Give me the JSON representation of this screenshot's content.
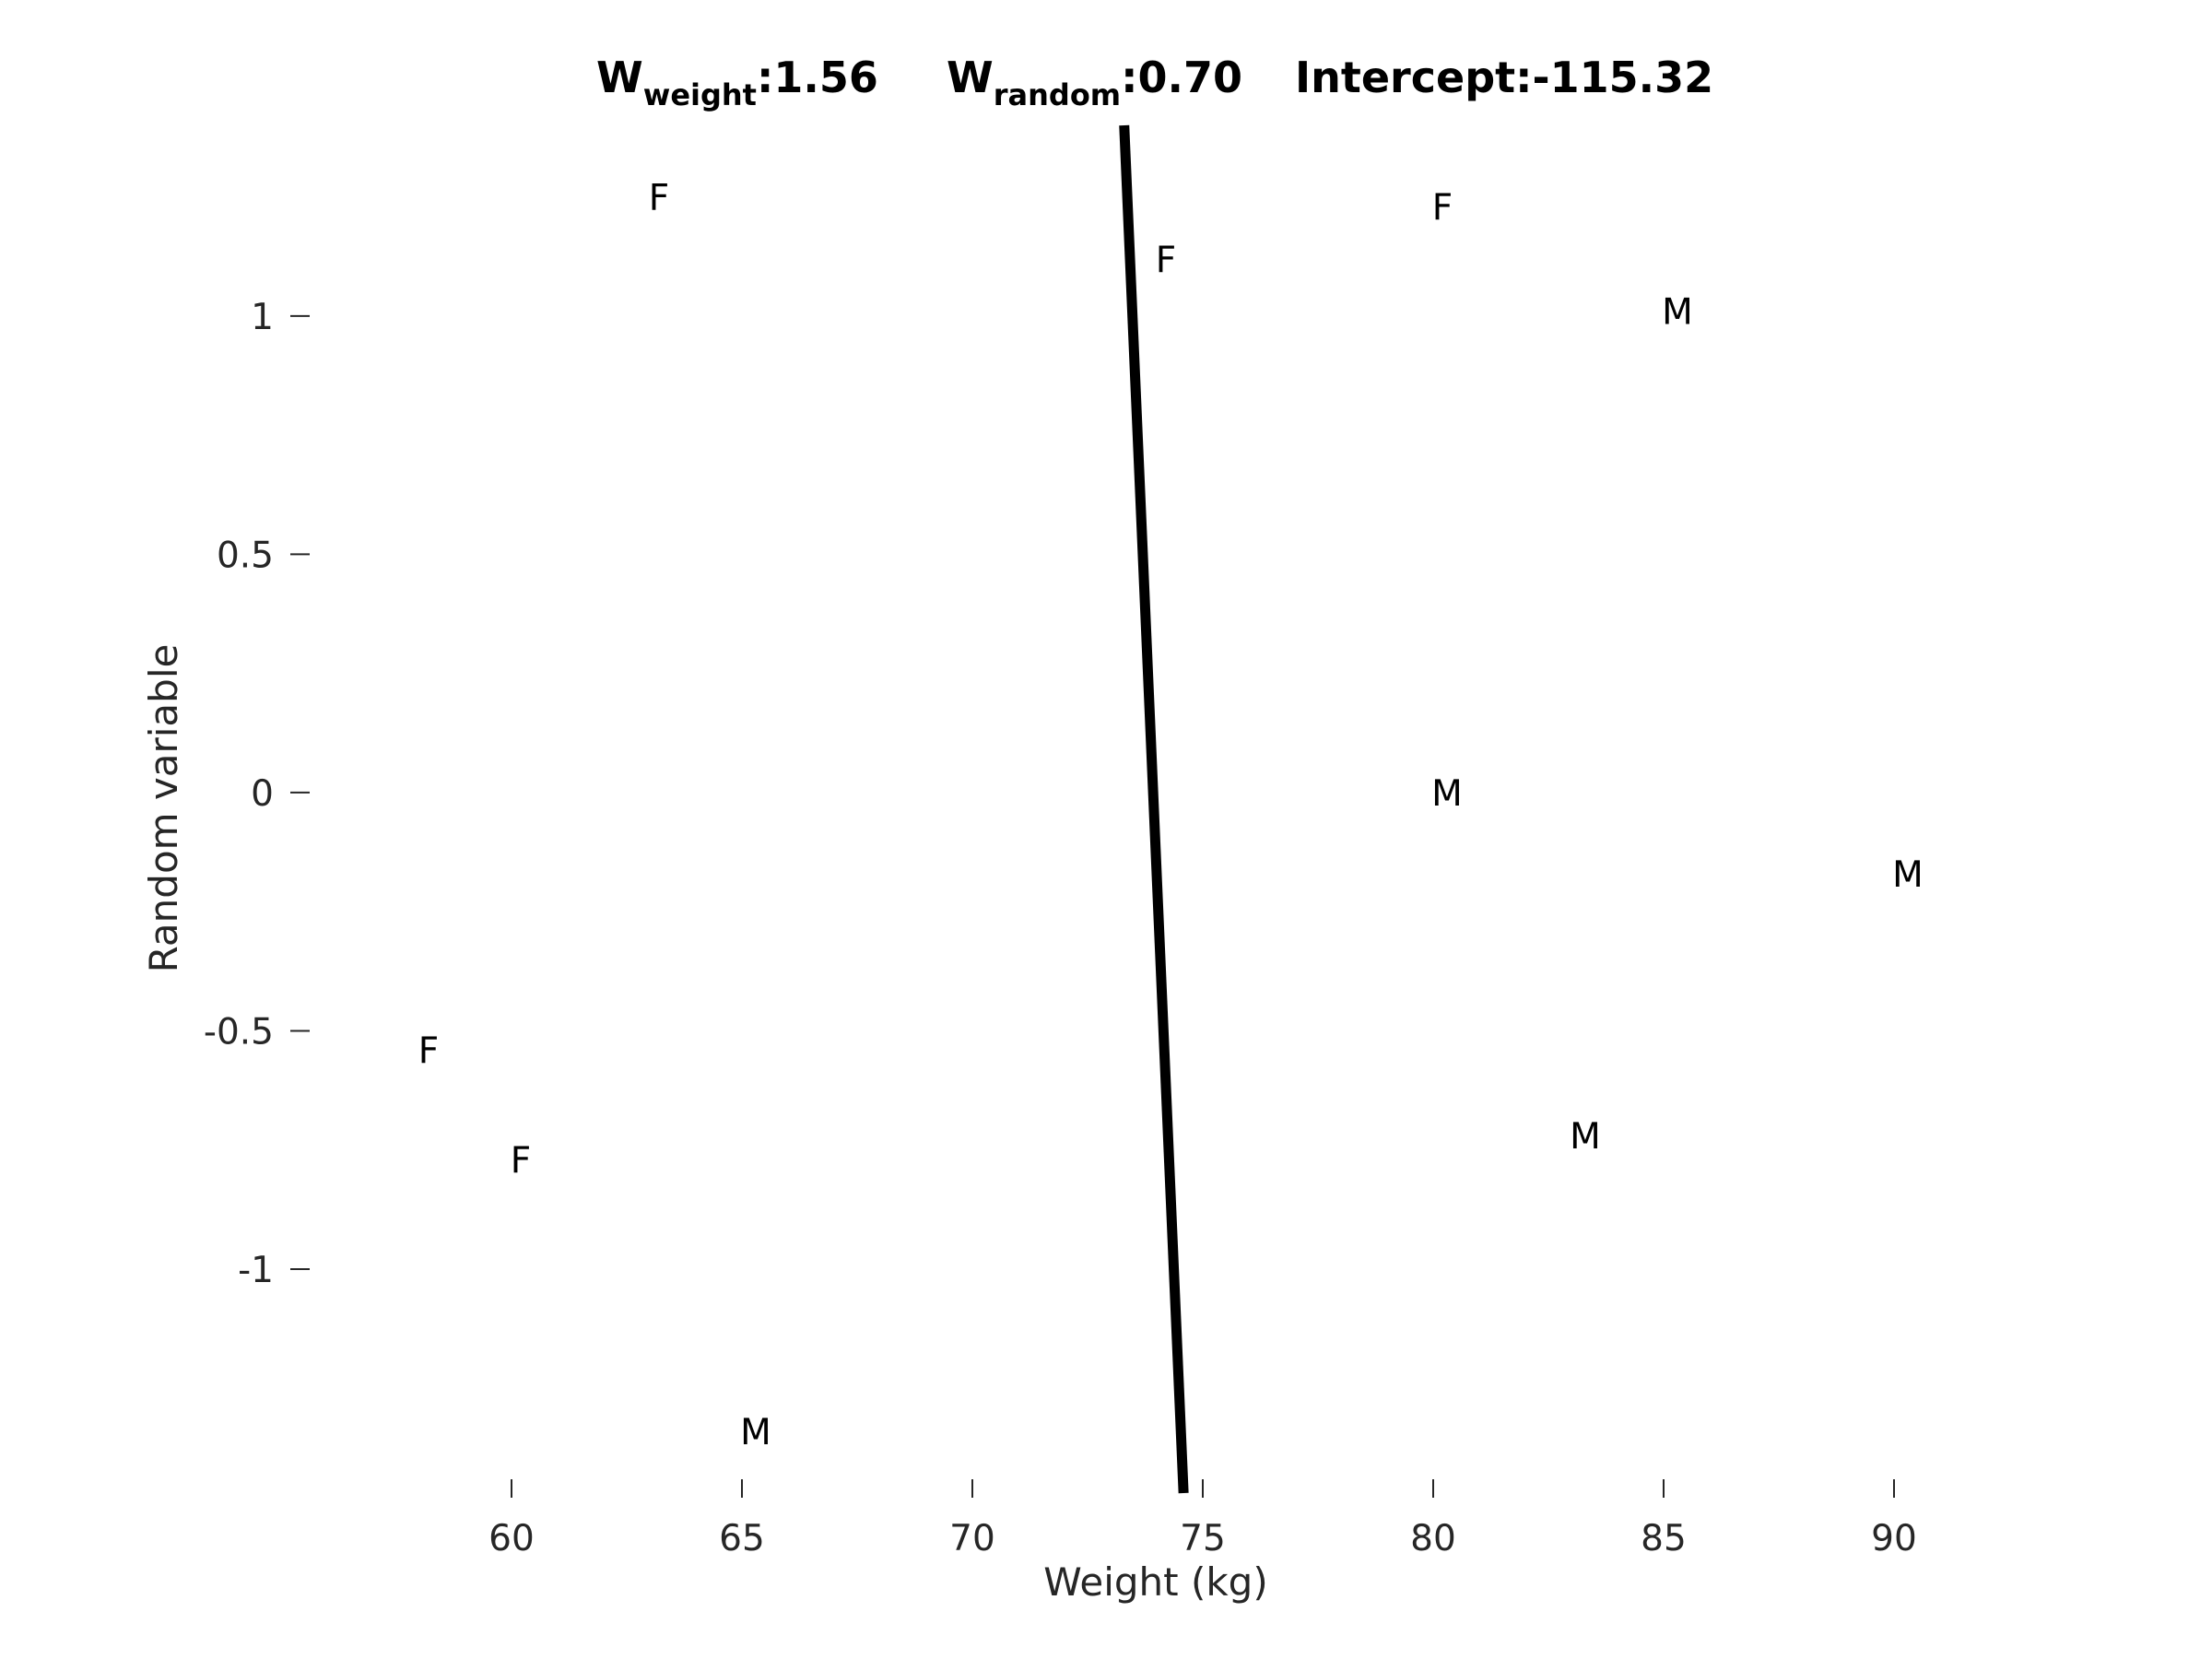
{
  "chart_data": {
    "type": "scatter",
    "title_parts": {
      "w_weight_main": "W",
      "w_weight_sub": "weight",
      "w_weight_value": ":1.56",
      "w_random_main": "W",
      "w_random_sub": "random",
      "w_random_value": ":0.70",
      "intercept": "Intercept:-115.32"
    },
    "xlabel": "Weight (kg)",
    "ylabel": "Random variable",
    "xlim": [
      55.8,
      92.8
    ],
    "ylim": [
      -1.47,
      1.4
    ],
    "x_ticks": [
      {
        "value": 60,
        "label": "60"
      },
      {
        "value": 65,
        "label": "65"
      },
      {
        "value": 70,
        "label": "70"
      },
      {
        "value": 75,
        "label": "75"
      },
      {
        "value": 80,
        "label": "80"
      },
      {
        "value": 85,
        "label": "85"
      },
      {
        "value": 90,
        "label": "90"
      }
    ],
    "y_ticks": [
      {
        "value": 1,
        "label": "1"
      },
      {
        "value": 0.5,
        "label": "0.5"
      },
      {
        "value": 0,
        "label": "0"
      },
      {
        "value": -0.5,
        "label": "-0.5"
      },
      {
        "value": -1,
        "label": "-1"
      }
    ],
    "points": [
      {
        "x": 63.2,
        "y": 1.25,
        "label": "F"
      },
      {
        "x": 74.2,
        "y": 1.12,
        "label": "F"
      },
      {
        "x": 80.2,
        "y": 1.23,
        "label": "F"
      },
      {
        "x": 85.3,
        "y": 1.01,
        "label": "M"
      },
      {
        "x": 80.3,
        "y": 0.0,
        "label": "M"
      },
      {
        "x": 90.3,
        "y": -0.17,
        "label": "M"
      },
      {
        "x": 58.2,
        "y": -0.54,
        "label": "F"
      },
      {
        "x": 60.2,
        "y": -0.77,
        "label": "F"
      },
      {
        "x": 83.3,
        "y": -0.72,
        "label": "M"
      },
      {
        "x": 65.3,
        "y": -1.34,
        "label": "M"
      }
    ],
    "decision_boundary": {
      "w_weight": 1.56,
      "w_random": 0.7,
      "intercept": -115.32,
      "color": "#000000"
    },
    "grid": false,
    "legend": "none"
  }
}
